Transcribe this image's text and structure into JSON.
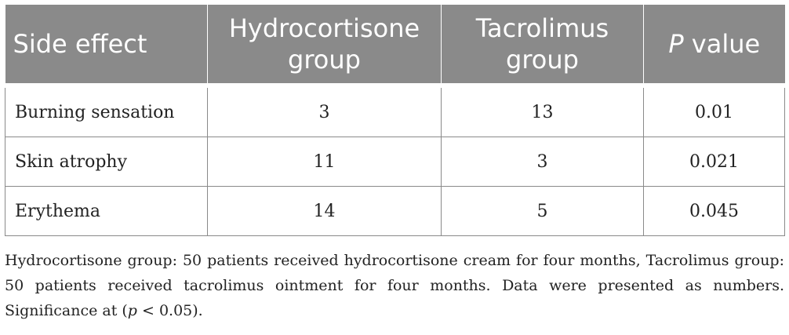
{
  "table": {
    "header": [
      "Side effect",
      "Hydrocortisone group",
      "Tacrolimus group",
      [
        "P",
        "value"
      ]
    ],
    "rows": [
      [
        "Burning sensation",
        "3",
        "13",
        "0.01"
      ],
      [
        "Skin atrophy",
        "11",
        "3",
        "0.021"
      ],
      [
        "Erythema",
        "14",
        "5",
        "0.045"
      ]
    ]
  },
  "footnote": [
    "Hydrocortisone group: 50 patients received hydrocortisone cream for four months, Tacrolimus group: 50 patients received tacrolimus ointment for four months. Data were presented as numbers. Significance at (",
    "p",
    " < 0.05)."
  ]
}
